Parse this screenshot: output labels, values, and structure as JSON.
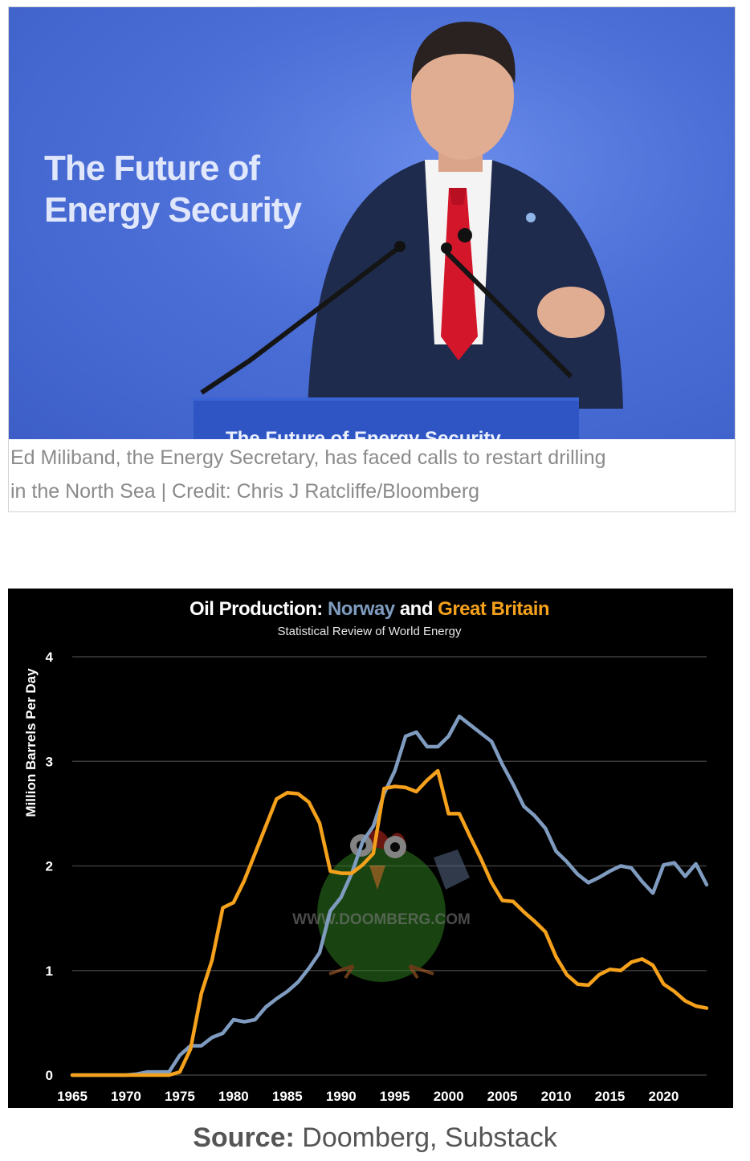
{
  "photo": {
    "headline_line1": "The Future of",
    "headline_line2": "Energy Security",
    "podium_text": "The Future of Energy Security",
    "caption_line1": "Ed Miliband, the Energy Secretary, has faced calls to restart drilling",
    "caption_line2": "in the North Sea | Credit: Chris J Ratcliffe/Bloomberg"
  },
  "chart_data": {
    "type": "line",
    "title_prefix": "Oil Production: ",
    "title_series1": "Norway",
    "title_mid": " and ",
    "title_series2": "Great Britain",
    "subtitle": "Statistical Review of World Energy",
    "ylabel": "Million Barrels Per Day",
    "xlabel": "",
    "xlim": [
      1965,
      2024
    ],
    "ylim": [
      0,
      4
    ],
    "xticks": [
      1965,
      1970,
      1975,
      1980,
      1985,
      1990,
      1995,
      2000,
      2005,
      2010,
      2015,
      2020
    ],
    "yticks": [
      0,
      1,
      2,
      3,
      4
    ],
    "grid": true,
    "watermark": "WWW.DOOMBERG.COM",
    "colors": {
      "norway": "#7f9cc0",
      "britain": "#f5a11c",
      "background": "#000000"
    },
    "x": [
      1965,
      1966,
      1967,
      1968,
      1969,
      1970,
      1971,
      1972,
      1973,
      1974,
      1975,
      1976,
      1977,
      1978,
      1979,
      1980,
      1981,
      1982,
      1983,
      1984,
      1985,
      1986,
      1987,
      1988,
      1989,
      1990,
      1991,
      1992,
      1993,
      1994,
      1995,
      1996,
      1997,
      1998,
      1999,
      2000,
      2001,
      2002,
      2003,
      2004,
      2005,
      2006,
      2007,
      2008,
      2009,
      2010,
      2011,
      2012,
      2013,
      2014,
      2015,
      2016,
      2017,
      2018,
      2019,
      2020,
      2021,
      2022,
      2023,
      2024
    ],
    "series": [
      {
        "name": "Norway",
        "color": "#7f9cc0",
        "values": [
          0,
          0,
          0,
          0,
          0,
          0,
          0.01,
          0.03,
          0.03,
          0.03,
          0.19,
          0.28,
          0.28,
          0.36,
          0.4,
          0.53,
          0.51,
          0.53,
          0.65,
          0.73,
          0.8,
          0.89,
          1.02,
          1.17,
          1.57,
          1.7,
          1.93,
          2.23,
          2.38,
          2.69,
          2.91,
          3.24,
          3.28,
          3.14,
          3.14,
          3.24,
          3.43,
          3.35,
          3.27,
          3.19,
          2.97,
          2.78,
          2.57,
          2.48,
          2.36,
          2.14,
          2.04,
          1.92,
          1.84,
          1.89,
          1.95,
          2.0,
          1.98,
          1.85,
          1.74,
          2.01,
          2.03,
          1.9,
          2.02,
          1.82
        ]
      },
      {
        "name": "Great Britain",
        "color": "#f5a11c",
        "values": [
          0,
          0,
          0,
          0,
          0,
          0,
          0,
          0,
          0,
          0,
          0.03,
          0.25,
          0.78,
          1.1,
          1.6,
          1.65,
          1.86,
          2.12,
          2.38,
          2.64,
          2.7,
          2.69,
          2.61,
          2.41,
          1.95,
          1.93,
          1.93,
          2.01,
          2.12,
          2.74,
          2.76,
          2.75,
          2.71,
          2.82,
          2.91,
          2.5,
          2.5,
          2.28,
          2.07,
          1.84,
          1.67,
          1.66,
          1.56,
          1.47,
          1.37,
          1.13,
          0.96,
          0.87,
          0.86,
          0.96,
          1.01,
          1.0,
          1.08,
          1.11,
          1.05,
          0.87,
          0.8,
          0.71,
          0.66,
          0.64
        ]
      }
    ]
  },
  "source": {
    "label": "Source:",
    "text": " Doomberg, Substack"
  }
}
